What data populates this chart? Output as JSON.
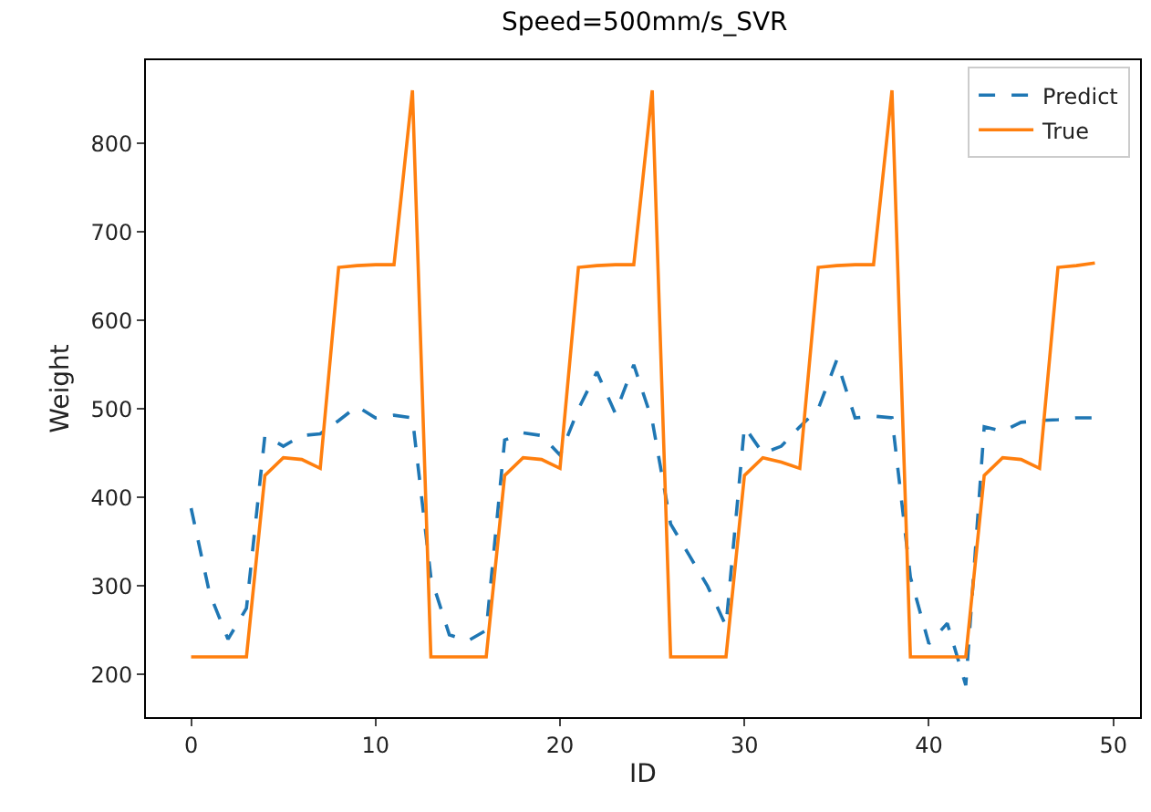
{
  "chart_data": {
    "type": "line",
    "title": "Speed=500mm/s_SVR",
    "xlabel": "ID",
    "ylabel": "Weight",
    "x": [
      0,
      1,
      2,
      3,
      4,
      5,
      6,
      7,
      8,
      9,
      10,
      11,
      12,
      13,
      14,
      15,
      16,
      17,
      18,
      19,
      20,
      21,
      22,
      23,
      24,
      25,
      26,
      27,
      28,
      29,
      30,
      31,
      32,
      33,
      34,
      35,
      36,
      37,
      38,
      39,
      40,
      41,
      42,
      43,
      44,
      45,
      46,
      47,
      48,
      49
    ],
    "series": [
      {
        "name": "Predict",
        "color": "#1f77b4",
        "line_style": "dashed",
        "values": [
          388,
          292,
          240,
          275,
          470,
          458,
          470,
          472,
          487,
          503,
          490,
          493,
          490,
          310,
          245,
          238,
          250,
          465,
          473,
          470,
          448,
          500,
          542,
          495,
          550,
          487,
          370,
          335,
          300,
          255,
          480,
          450,
          458,
          480,
          500,
          555,
          490,
          492,
          490,
          310,
          235,
          258,
          188,
          480,
          475,
          485,
          487,
          488,
          490,
          490
        ]
      },
      {
        "name": "True",
        "color": "#ff7f0e",
        "line_style": "solid",
        "values": [
          220,
          220,
          220,
          220,
          425,
          445,
          443,
          433,
          660,
          662,
          663,
          663,
          860,
          220,
          220,
          220,
          220,
          425,
          445,
          443,
          433,
          660,
          662,
          663,
          663,
          860,
          220,
          220,
          220,
          220,
          425,
          445,
          440,
          433,
          660,
          662,
          663,
          663,
          860,
          220,
          220,
          220,
          220,
          425,
          445,
          443,
          433,
          660,
          662,
          665
        ]
      }
    ],
    "xlim": [
      -2.45,
      51.45
    ],
    "ylim": [
      152,
      894
    ],
    "xticks": [
      0,
      10,
      20,
      30,
      40,
      50
    ],
    "yticks": [
      200,
      300,
      400,
      500,
      600,
      700,
      800
    ],
    "grid": false,
    "legend": "top right",
    "marker": "none"
  }
}
